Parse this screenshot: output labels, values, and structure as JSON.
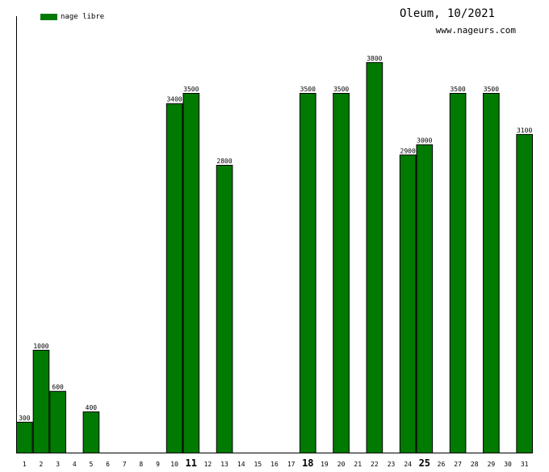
{
  "header": {
    "title": "Oleum, 10/2021",
    "site": "www.nageurs.com"
  },
  "legend": {
    "label": "nage libre",
    "color": "#007A00"
  },
  "chart_data": {
    "type": "bar",
    "categories": [
      "1",
      "2",
      "3",
      "4",
      "5",
      "6",
      "7",
      "8",
      "9",
      "10",
      "11",
      "12",
      "13",
      "14",
      "15",
      "16",
      "17",
      "18",
      "19",
      "20",
      "21",
      "22",
      "23",
      "24",
      "25",
      "26",
      "27",
      "28",
      "29",
      "30",
      "31"
    ],
    "highlighted_categories": [
      "11",
      "18",
      "25"
    ],
    "series": [
      {
        "name": "nage libre",
        "color": "#007A00",
        "values": [
          300,
          1000,
          600,
          0,
          400,
          0,
          0,
          0,
          0,
          3400,
          3500,
          0,
          2800,
          0,
          0,
          0,
          0,
          3500,
          0,
          3500,
          0,
          3800,
          0,
          2900,
          3000,
          0,
          3500,
          0,
          3500,
          0,
          3100
        ]
      }
    ],
    "ylim": [
      0,
      4200
    ],
    "grid": false,
    "legend_position": "top-left"
  }
}
